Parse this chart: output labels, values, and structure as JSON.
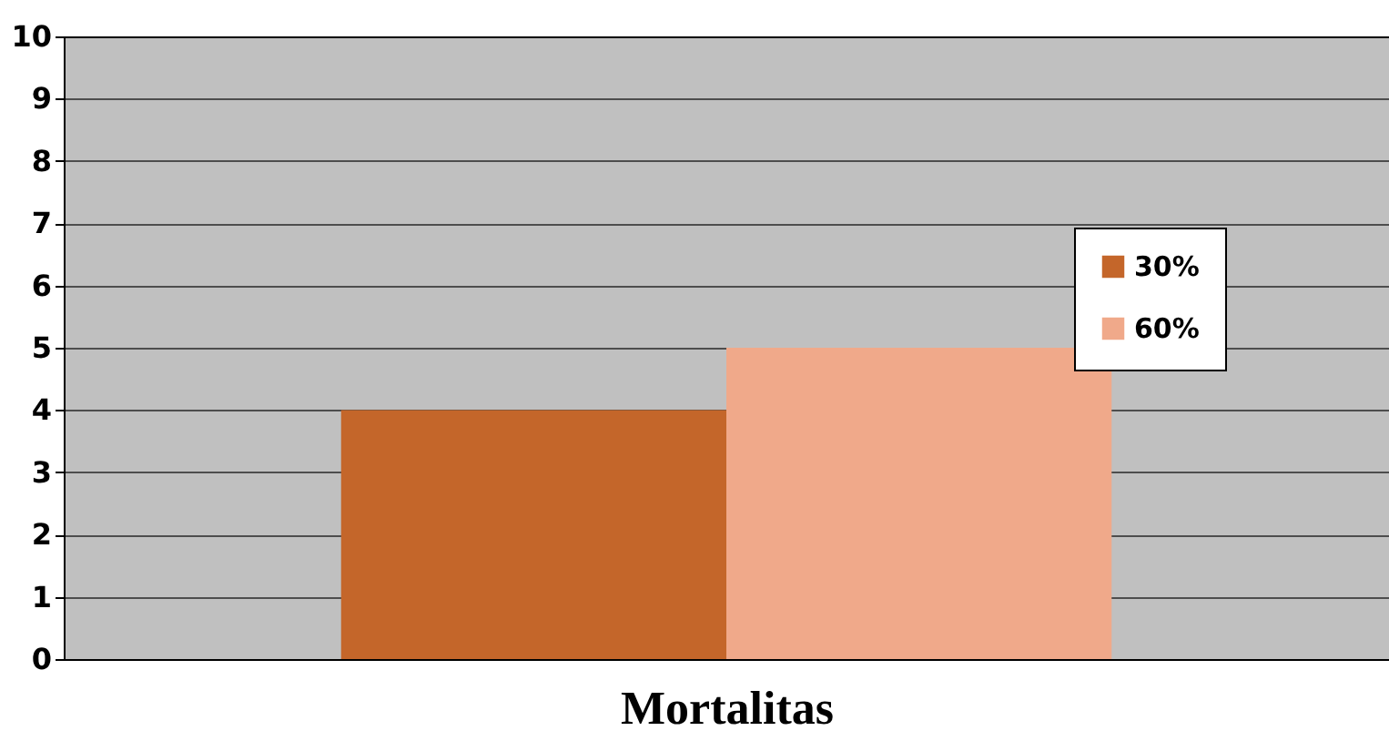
{
  "chart_data": {
    "type": "bar",
    "xlabel": "Mortalitas",
    "categories": [
      null
    ],
    "series": [
      {
        "name": "30%",
        "color": "#c4662a",
        "values": [
          4
        ]
      },
      {
        "name": "60%",
        "color": "#f0a98a",
        "values": [
          5
        ]
      }
    ],
    "ylim": [
      0,
      10
    ],
    "yticks": [
      0,
      1,
      2,
      3,
      4,
      5,
      6,
      7,
      8,
      9,
      10
    ],
    "grid": "y",
    "legend": "right"
  }
}
